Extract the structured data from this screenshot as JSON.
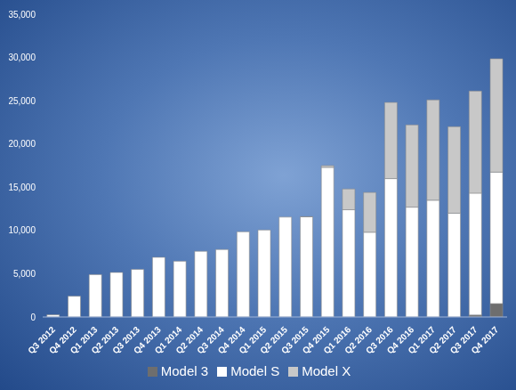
{
  "chart_data": {
    "type": "bar",
    "stacked": true,
    "grid": false,
    "legend": "bottom",
    "categories": [
      "Q3 2012",
      "Q4 2012",
      "Q1 2013",
      "Q2 2013",
      "Q3 2013",
      "Q4 2013",
      "Q1 2014",
      "Q2 2014",
      "Q3 2014",
      "Q4 2014",
      "Q1 2015",
      "Q2 2015",
      "Q3 2015",
      "Q4 2015",
      "Q1 2016",
      "Q2 2016",
      "Q3 2016",
      "Q4 2016",
      "Q1 2017",
      "Q2 2017",
      "Q3 2017",
      "Q4 2017"
    ],
    "series": [
      {
        "name": "Model 3",
        "color": "#6e6e6e",
        "values": [
          0,
          0,
          0,
          0,
          0,
          0,
          0,
          0,
          0,
          0,
          0,
          0,
          0,
          0,
          0,
          0,
          0,
          0,
          0,
          0,
          220,
          1550
        ]
      },
      {
        "name": "Model S",
        "color": "#ffffff",
        "values": [
          250,
          2400,
          4900,
          5150,
          5500,
          6900,
          6450,
          7600,
          7800,
          9850,
          10050,
          11550,
          11580,
          17300,
          12400,
          9800,
          16000,
          12700,
          13500,
          12000,
          14100,
          15200
        ]
      },
      {
        "name": "Model X",
        "color": "#c8c8c8",
        "values": [
          0,
          0,
          0,
          0,
          0,
          0,
          0,
          0,
          0,
          0,
          0,
          0,
          20,
          200,
          2400,
          4600,
          8800,
          9500,
          11600,
          10000,
          11800,
          13100
        ]
      }
    ],
    "ylim": [
      0,
      35000
    ],
    "yticks": [
      0,
      {
        "value": 5000,
        "label": "5,000"
      },
      {
        "value": 10000,
        "label": "10,000"
      },
      {
        "value": 15000,
        "label": "15,000"
      },
      {
        "value": 20000,
        "label": "20,000"
      },
      {
        "value": 25000,
        "label": "25,000"
      },
      {
        "value": 30000,
        "label": "30,000"
      },
      {
        "value": 35000,
        "label": "35,000"
      }
    ]
  }
}
